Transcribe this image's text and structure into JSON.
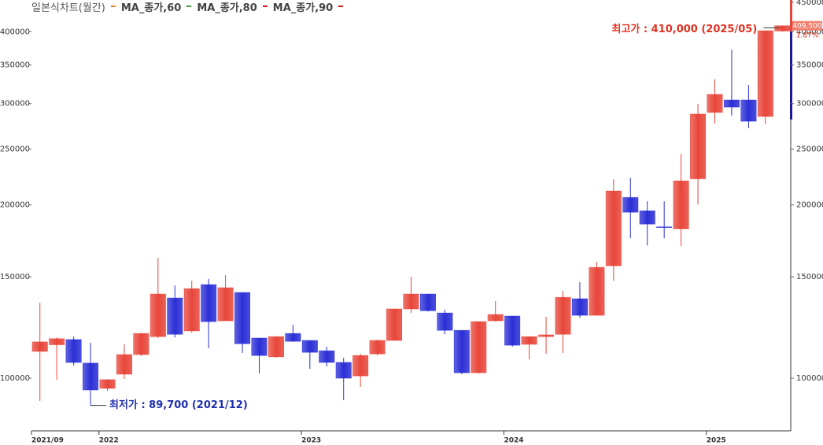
{
  "chart_data": {
    "type": "candlestick",
    "title": "일본식차트(월간)",
    "legend": [
      {
        "name": "MA_종가,60",
        "color": "#f08020"
      },
      {
        "name": "MA_종가,80",
        "color": "#3aa040"
      },
      {
        "name": "MA_종가,90",
        "color": "#d02020"
      }
    ],
    "categories": [
      "2021/09",
      null,
      null,
      null,
      "2022",
      null,
      null,
      null,
      null,
      null,
      null,
      null,
      null,
      null,
      null,
      null,
      "2023",
      null,
      null,
      null,
      null,
      null,
      null,
      null,
      null,
      null,
      null,
      null,
      "2024",
      null,
      null,
      null,
      null,
      null,
      null,
      null,
      null,
      null,
      null,
      null,
      "2025",
      null,
      null,
      null,
      null
    ],
    "open": [
      111300,
      114300,
      116700,
      106200,
      96000,
      101600,
      109900,
      118100,
      137800,
      120800,
      145400,
      125800,
      140900,
      117400,
      108900,
      119600,
      116300,
      111600,
      106500,
      100900,
      110200,
      116300,
      131900,
      140000,
      129800,
      121100,
      102200,
      125800,
      128200,
      114500,
      118100,
      119200,
      137400,
      128600,
      156800,
      206100,
      195400,
      183200,
      181800,
      222000,
      289500,
      304400,
      304400,
      284900,
      401000
    ],
    "high": [
      135200,
      117700,
      118100,
      115200,
      99600,
      114500,
      119900,
      161800,
      144900,
      147700,
      148700,
      151000,
      140900,
      117400,
      118100,
      123800,
      116300,
      113400,
      108500,
      110200,
      116700,
      131900,
      150000,
      140000,
      131500,
      121100,
      125400,
      136100,
      128200,
      118100,
      127800,
      141800,
      146800,
      159300,
      221600,
      223000,
      202900,
      202900,
      245000,
      299700,
      330400,
      372300,
      323200,
      401500,
      410000
    ],
    "low": [
      91300,
      99400,
      105200,
      89700,
      95100,
      99700,
      109200,
      117400,
      117700,
      120100,
      112700,
      125800,
      110600,
      101900,
      108600,
      115600,
      103800,
      104800,
      91600,
      96600,
      109500,
      116300,
      129800,
      130600,
      119200,
      101600,
      101900,
      125400,
      113400,
      107800,
      110200,
      110600,
      127400,
      128600,
      147700,
      175000,
      170100,
      175000,
      169600,
      200400,
      277000,
      285800,
      271800,
      276100,
      400000
    ],
    "close": [
      115600,
      117100,
      106500,
      95400,
      99400,
      109900,
      119600,
      140000,
      119200,
      143100,
      125400,
      143600,
      114800,
      109500,
      118100,
      115900,
      110900,
      106500,
      100000,
      109500,
      116300,
      131900,
      140000,
      131000,
      121100,
      102200,
      125400,
      129000,
      114100,
      118100,
      118900,
      138200,
      128600,
      155800,
      211400,
      194200,
      185200,
      182900,
      220200,
      287700,
      311200,
      295900,
      279600,
      401500,
      409500
    ],
    "up_color": "#e8463a",
    "down_color": "#2b2fd6",
    "log_scale": true,
    "ylim": [
      81000,
      454000
    ],
    "yticks": [
      100000,
      150000,
      200000,
      250000,
      300000,
      350000,
      400000
    ],
    "y2lim": [
      81000,
      454000
    ],
    "y2ticks": [
      100000,
      150000,
      200000,
      250000,
      300000,
      350000,
      400000,
      450000
    ],
    "annotations": [
      {
        "text": "최고가 : 410,000 (2025/05)",
        "color": "#e03020"
      },
      {
        "text": "최저가 : 89,700 (2021/12)",
        "color": "#2030b0"
      }
    ],
    "last_price_label": "409,500",
    "change_label": "1.87%"
  }
}
